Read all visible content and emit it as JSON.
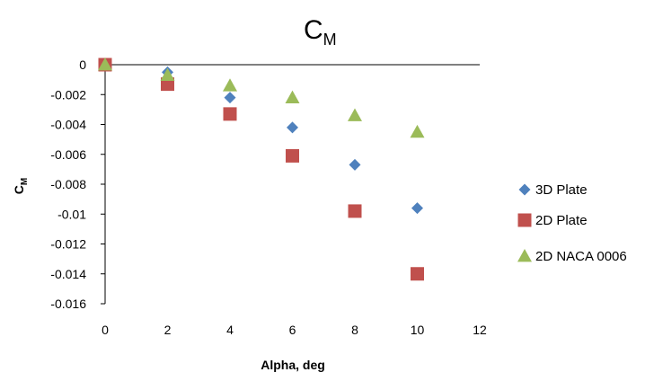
{
  "chart_data": {
    "type": "scatter",
    "title": {
      "main": "C",
      "sub": "M"
    },
    "xlabel": "Alpha, deg",
    "ylabel": {
      "main": "C",
      "sub": "M"
    },
    "xlim": [
      0,
      12
    ],
    "ylim": [
      -0.016,
      0
    ],
    "x_ticks": [
      0,
      2,
      4,
      6,
      8,
      10,
      12
    ],
    "y_ticks": [
      0,
      -0.002,
      -0.004,
      -0.006,
      -0.008,
      -0.01,
      -0.012,
      -0.014,
      -0.016
    ],
    "x_tick_labels": [
      "0",
      "2",
      "4",
      "6",
      "8",
      "10",
      "12"
    ],
    "y_tick_labels": [
      "0",
      "-0.002",
      "-0.004",
      "-0.006",
      "-0.008",
      "-0.01",
      "-0.012",
      "-0.014",
      "-0.016"
    ],
    "grid": false,
    "legend_position": "right",
    "series": [
      {
        "name": "3D Plate",
        "marker": "diamond",
        "color": "#4F81BD",
        "x": [
          0,
          2,
          4,
          6,
          8,
          10
        ],
        "y": [
          0,
          -0.0005,
          -0.0022,
          -0.0042,
          -0.0067,
          -0.0096
        ]
      },
      {
        "name": "2D Plate",
        "marker": "square",
        "color": "#C0504D",
        "x": [
          0,
          2,
          4,
          6,
          8,
          10
        ],
        "y": [
          0,
          -0.0013,
          -0.0033,
          -0.0061,
          -0.0098,
          -0.014
        ]
      },
      {
        "name": "2D NACA 0006",
        "marker": "triangle",
        "color": "#9BBB59",
        "x": [
          0,
          2,
          4,
          6,
          8,
          10
        ],
        "y": [
          0,
          -0.0007,
          -0.0014,
          -0.0022,
          -0.0034,
          -0.0045
        ]
      }
    ]
  }
}
